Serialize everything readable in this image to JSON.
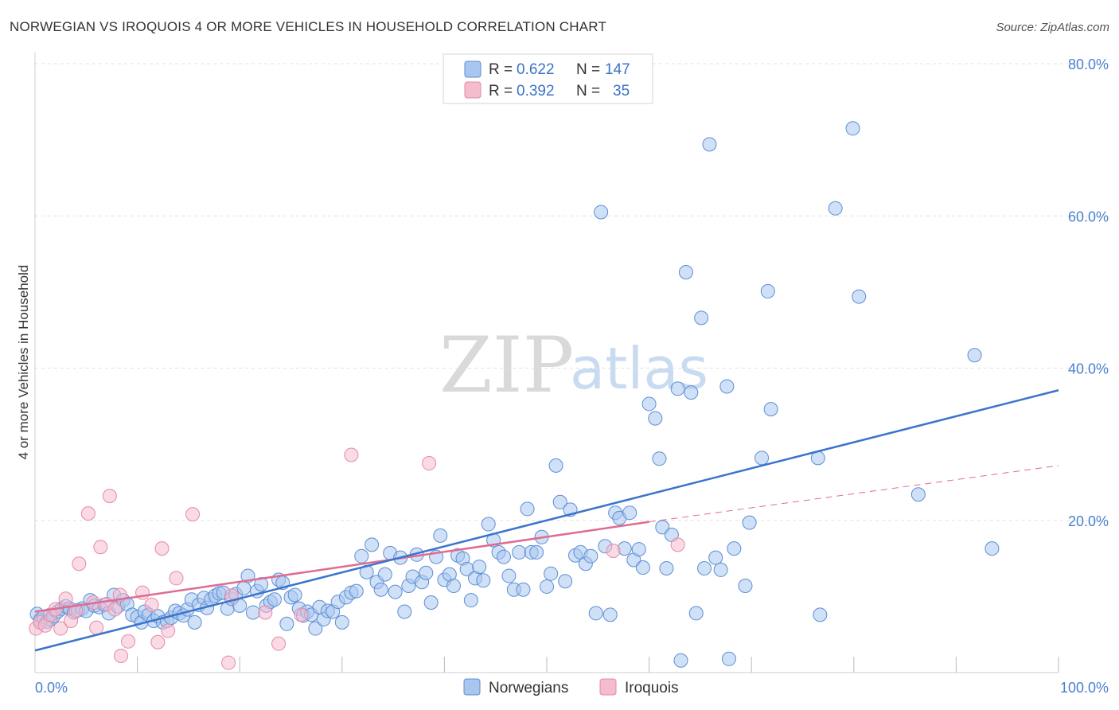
{
  "header": {
    "title": "NORWEGIAN VS IROQUOIS 4 OR MORE VEHICLES IN HOUSEHOLD CORRELATION CHART",
    "source": "Source: ZipAtlas.com"
  },
  "watermark": {
    "zip": "ZIP",
    "atlas": "atlas"
  },
  "stats_legend": {
    "rows": [
      {
        "r_label": "R =",
        "r_value": "0.622",
        "n_label": "N =",
        "n_value": "147"
      },
      {
        "r_label": "R =",
        "r_value": "0.392",
        "n_label": "N =",
        "n_value": "35"
      }
    ]
  },
  "colors": {
    "norwegians_fill": "#a9c6ee",
    "norwegians_stroke": "#5b8fd6",
    "norwegians_line": "#3a74cc",
    "iroquois_fill": "#f5bccd",
    "iroquois_stroke": "#e58aa6",
    "iroquois_line": "#e06b92",
    "grid": "#e2e2e2",
    "axis_text": "#4a7fcf"
  },
  "chart_data": {
    "type": "scatter",
    "title": "NORWEGIAN VS IROQUOIS 4 OR MORE VEHICLES IN HOUSEHOLD CORRELATION CHART",
    "xlabel": "",
    "ylabel": "4 or more Vehicles in Household",
    "xlim": [
      0,
      100
    ],
    "ylim": [
      0,
      80
    ],
    "x_tick_labels": [
      "0.0%",
      "100.0%"
    ],
    "y_ticks": [
      20,
      40,
      60,
      80
    ],
    "y_tick_labels": [
      "20.0%",
      "40.0%",
      "60.0%",
      "80.0%"
    ],
    "grid": true,
    "legend": [
      "Norwegians",
      "Iroquois"
    ],
    "series": [
      {
        "name": "Norwegians",
        "r": 0.622,
        "n": 147,
        "trend": {
          "x": [
            0,
            100
          ],
          "y": [
            2.9,
            37.1
          ]
        },
        "points": [
          [
            0.2,
            7.7
          ],
          [
            0.5,
            6.9
          ],
          [
            0.8,
            7.3
          ],
          [
            1.2,
            6.7
          ],
          [
            1.5,
            7.0
          ],
          [
            1.8,
            7.4
          ],
          [
            2.2,
            8.0
          ],
          [
            2.6,
            8.4
          ],
          [
            3.0,
            8.7
          ],
          [
            3.4,
            8.4
          ],
          [
            3.8,
            7.9
          ],
          [
            4.2,
            8.2
          ],
          [
            4.6,
            8.4
          ],
          [
            5.0,
            8.1
          ],
          [
            5.4,
            9.5
          ],
          [
            5.8,
            8.8
          ],
          [
            6.3,
            8.6
          ],
          [
            6.8,
            8.9
          ],
          [
            7.2,
            7.8
          ],
          [
            7.7,
            10.2
          ],
          [
            8.1,
            8.7
          ],
          [
            8.6,
            9.5
          ],
          [
            9.0,
            9.0
          ],
          [
            9.5,
            7.6
          ],
          [
            10.0,
            7.3
          ],
          [
            10.4,
            6.6
          ],
          [
            10.7,
            8.0
          ],
          [
            11.1,
            7.6
          ],
          [
            11.6,
            6.8
          ],
          [
            12.0,
            7.4
          ],
          [
            12.5,
            6.6
          ],
          [
            12.9,
            6.8
          ],
          [
            13.3,
            7.2
          ],
          [
            13.7,
            8.1
          ],
          [
            14.1,
            7.8
          ],
          [
            14.5,
            7.5
          ],
          [
            14.9,
            8.3
          ],
          [
            15.3,
            9.6
          ],
          [
            15.6,
            6.6
          ],
          [
            16.0,
            8.9
          ],
          [
            16.5,
            9.8
          ],
          [
            16.8,
            8.5
          ],
          [
            17.2,
            9.6
          ],
          [
            17.6,
            10.1
          ],
          [
            18.0,
            10.4
          ],
          [
            18.4,
            10.5
          ],
          [
            18.8,
            8.4
          ],
          [
            19.2,
            9.7
          ],
          [
            19.6,
            10.3
          ],
          [
            20.0,
            8.8
          ],
          [
            20.4,
            11.1
          ],
          [
            20.8,
            12.7
          ],
          [
            21.3,
            7.9
          ],
          [
            21.7,
            10.7
          ],
          [
            22.1,
            11.6
          ],
          [
            22.6,
            8.8
          ],
          [
            23.0,
            9.3
          ],
          [
            23.4,
            9.6
          ],
          [
            23.8,
            12.2
          ],
          [
            24.2,
            11.8
          ],
          [
            24.6,
            6.4
          ],
          [
            25.0,
            9.9
          ],
          [
            25.4,
            10.2
          ],
          [
            25.8,
            8.4
          ],
          [
            26.2,
            7.5
          ],
          [
            26.6,
            8.0
          ],
          [
            27.0,
            7.6
          ],
          [
            27.4,
            5.8
          ],
          [
            27.8,
            8.6
          ],
          [
            28.2,
            7.0
          ],
          [
            28.6,
            8.1
          ],
          [
            29.1,
            8.0
          ],
          [
            29.6,
            9.3
          ],
          [
            30.0,
            6.6
          ],
          [
            30.4,
            9.9
          ],
          [
            30.9,
            10.5
          ],
          [
            31.4,
            10.7
          ],
          [
            31.9,
            15.3
          ],
          [
            32.4,
            13.2
          ],
          [
            32.9,
            16.8
          ],
          [
            33.4,
            11.9
          ],
          [
            33.8,
            10.9
          ],
          [
            34.2,
            12.9
          ],
          [
            34.7,
            15.7
          ],
          [
            35.2,
            10.6
          ],
          [
            35.7,
            15.1
          ],
          [
            36.1,
            8.0
          ],
          [
            36.5,
            11.4
          ],
          [
            36.9,
            12.6
          ],
          [
            37.3,
            15.5
          ],
          [
            37.8,
            11.9
          ],
          [
            38.2,
            13.1
          ],
          [
            38.7,
            9.2
          ],
          [
            39.2,
            15.2
          ],
          [
            39.6,
            18.0
          ],
          [
            40.0,
            12.2
          ],
          [
            40.5,
            12.9
          ],
          [
            40.9,
            11.4
          ],
          [
            41.3,
            15.4
          ],
          [
            41.8,
            15.0
          ],
          [
            42.2,
            13.6
          ],
          [
            42.6,
            9.5
          ],
          [
            43.0,
            12.4
          ],
          [
            43.4,
            13.9
          ],
          [
            43.8,
            12.1
          ],
          [
            44.3,
            19.5
          ],
          [
            44.8,
            17.4
          ],
          [
            45.3,
            15.8
          ],
          [
            45.8,
            15.2
          ],
          [
            46.3,
            12.7
          ],
          [
            46.8,
            10.9
          ],
          [
            47.3,
            15.8
          ],
          [
            47.7,
            10.9
          ],
          [
            48.1,
            21.5
          ],
          [
            48.5,
            15.8
          ],
          [
            49.0,
            15.8
          ],
          [
            49.5,
            17.8
          ],
          [
            50.0,
            11.3
          ],
          [
            50.4,
            13.0
          ],
          [
            50.9,
            27.2
          ],
          [
            51.3,
            22.4
          ],
          [
            51.8,
            12.0
          ],
          [
            52.3,
            21.4
          ],
          [
            52.8,
            15.4
          ],
          [
            53.3,
            15.8
          ],
          [
            53.8,
            14.3
          ],
          [
            54.3,
            15.3
          ],
          [
            54.8,
            7.8
          ],
          [
            55.3,
            60.5
          ],
          [
            55.7,
            16.6
          ],
          [
            56.2,
            7.6
          ],
          [
            56.7,
            21.0
          ],
          [
            57.1,
            20.3
          ],
          [
            57.6,
            16.3
          ],
          [
            58.1,
            21.0
          ],
          [
            58.5,
            14.8
          ],
          [
            59.0,
            16.2
          ],
          [
            59.4,
            13.8
          ],
          [
            60.0,
            35.3
          ],
          [
            60.6,
            33.4
          ],
          [
            61.0,
            28.1
          ],
          [
            61.3,
            19.1
          ],
          [
            61.7,
            13.7
          ],
          [
            62.2,
            18.1
          ],
          [
            62.8,
            37.3
          ],
          [
            63.1,
            1.6
          ],
          [
            63.6,
            52.6
          ],
          [
            64.1,
            36.8
          ],
          [
            64.6,
            7.8
          ],
          [
            65.1,
            46.6
          ]
        ],
        "extra_points": [
          [
            65.4,
            13.7
          ],
          [
            65.9,
            69.4
          ],
          [
            66.5,
            15.1
          ],
          [
            67.0,
            13.5
          ],
          [
            67.6,
            37.6
          ],
          [
            67.8,
            1.8
          ],
          [
            68.3,
            16.3
          ],
          [
            69.4,
            11.4
          ],
          [
            69.8,
            19.7
          ],
          [
            71.0,
            28.2
          ],
          [
            71.6,
            50.1
          ],
          [
            71.9,
            34.6
          ],
          [
            76.5,
            28.2
          ],
          [
            76.7,
            7.6
          ],
          [
            78.2,
            61.0
          ],
          [
            79.9,
            71.5
          ],
          [
            80.5,
            49.4
          ],
          [
            86.3,
            23.4
          ],
          [
            91.8,
            41.7
          ],
          [
            93.5,
            16.3
          ]
        ]
      },
      {
        "name": "Iroquois",
        "r": 0.392,
        "n": 35,
        "trend": {
          "x": [
            0,
            60
          ],
          "y": [
            8.0,
            19.8
          ]
        },
        "trend_dashed": {
          "x": [
            60,
            100
          ],
          "y": [
            19.8,
            27.2
          ]
        },
        "points": [
          [
            0.1,
            5.8
          ],
          [
            0.5,
            6.6
          ],
          [
            1.0,
            6.2
          ],
          [
            1.5,
            7.6
          ],
          [
            2.0,
            8.3
          ],
          [
            2.5,
            5.8
          ],
          [
            3.0,
            9.7
          ],
          [
            3.5,
            6.8
          ],
          [
            4.0,
            8.1
          ],
          [
            4.3,
            14.3
          ],
          [
            5.2,
            20.9
          ],
          [
            5.7,
            9.2
          ],
          [
            6.0,
            5.9
          ],
          [
            6.4,
            16.5
          ],
          [
            7.0,
            9.0
          ],
          [
            7.3,
            23.2
          ],
          [
            7.8,
            8.3
          ],
          [
            8.3,
            10.2
          ],
          [
            8.4,
            2.2
          ],
          [
            9.1,
            4.1
          ],
          [
            10.5,
            10.5
          ],
          [
            11.4,
            8.9
          ],
          [
            12.0,
            4.0
          ],
          [
            12.4,
            16.3
          ],
          [
            13.0,
            5.5
          ],
          [
            13.8,
            12.4
          ],
          [
            15.4,
            20.8
          ],
          [
            18.9,
            1.3
          ],
          [
            19.2,
            10.1
          ],
          [
            22.5,
            7.9
          ],
          [
            23.8,
            3.8
          ],
          [
            26.0,
            7.6
          ],
          [
            30.9,
            28.6
          ],
          [
            38.5,
            27.5
          ],
          [
            56.5,
            16.0
          ],
          [
            62.8,
            16.8
          ]
        ]
      }
    ]
  },
  "bottom_legend": {
    "items": [
      "Norwegians",
      "Iroquois"
    ]
  }
}
